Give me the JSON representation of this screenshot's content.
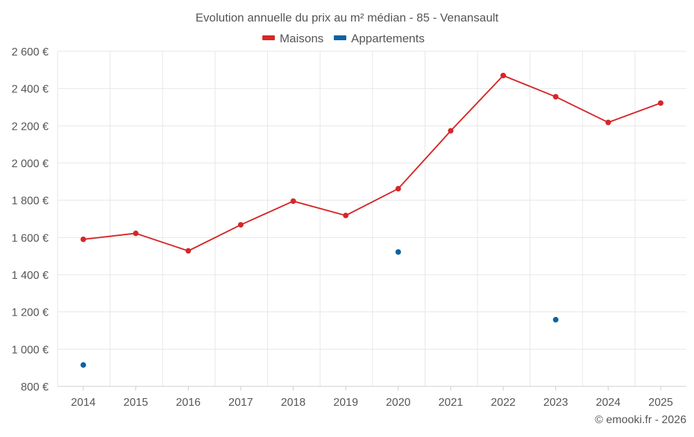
{
  "chart_data": {
    "type": "line",
    "title": "Evolution annuelle du prix au m² médian - 85 - Venansault",
    "xlabel": "",
    "ylabel": "",
    "categories": [
      "2014",
      "2015",
      "2016",
      "2017",
      "2018",
      "2019",
      "2020",
      "2021",
      "2022",
      "2023",
      "2024",
      "2025"
    ],
    "series": [
      {
        "name": "Maisons",
        "color": "#d62728",
        "values": [
          1590,
          1622,
          1528,
          1668,
          1795,
          1718,
          1862,
          2173,
          2470,
          2356,
          2218,
          2322
        ]
      },
      {
        "name": "Appartements",
        "color": "#0a63a0",
        "values": [
          915,
          null,
          null,
          null,
          null,
          null,
          1522,
          null,
          null,
          1158,
          null,
          null
        ]
      }
    ],
    "ylim": [
      800,
      2600
    ],
    "yticks": [
      800,
      1000,
      1200,
      1400,
      1600,
      1800,
      2000,
      2200,
      2400,
      2600
    ],
    "ytick_labels": [
      "800 €",
      "1 000 €",
      "1 200 €",
      "1 400 €",
      "1 600 €",
      "1 800 €",
      "2 000 €",
      "2 200 €",
      "2 400 €",
      "2 600 €"
    ],
    "grid": true,
    "legend": "top-center"
  },
  "credit": "© emooki.fr - 2026",
  "colors": {
    "grid": "#e6e6e6",
    "axis": "#cccccc",
    "text": "#555555"
  }
}
